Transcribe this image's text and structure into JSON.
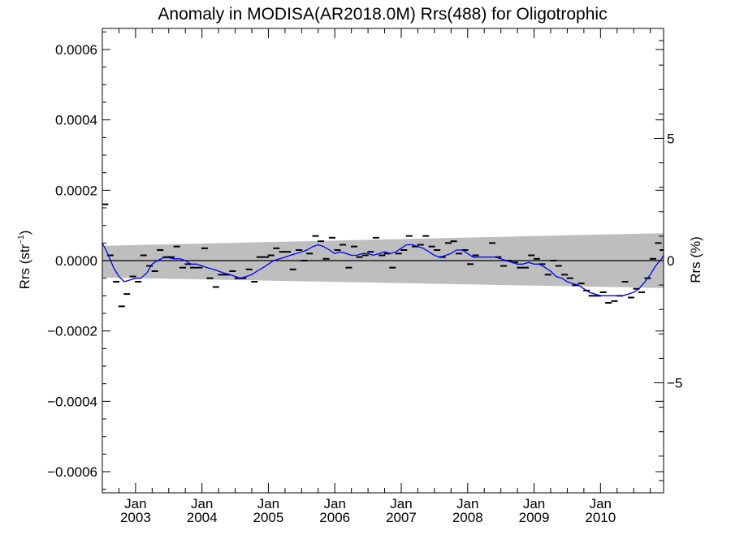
{
  "chart_data": {
    "type": "scatter",
    "title": "Anomaly in MODISA(AR2018.0M) Rrs(488) for Oligotrophic",
    "ylabel_left": {
      "base": "Rrs (str",
      "sup": "−1",
      "end": ")"
    },
    "ylabel_right": "Rrs (%)",
    "xlim": [
      2002.5,
      2010.95
    ],
    "ylim": [
      -0.00066,
      0.00066
    ],
    "y_right_lim": [
      -9.5,
      9.5
    ],
    "grid": false,
    "x_ticks": [
      {
        "value": 2003.0,
        "month": "Jan",
        "year": "2003"
      },
      {
        "value": 2004.0,
        "month": "Jan",
        "year": "2004"
      },
      {
        "value": 2005.0,
        "month": "Jan",
        "year": "2005"
      },
      {
        "value": 2006.0,
        "month": "Jan",
        "year": "2006"
      },
      {
        "value": 2007.0,
        "month": "Jan",
        "year": "2007"
      },
      {
        "value": 2008.0,
        "month": "Jan",
        "year": "2008"
      },
      {
        "value": 2009.0,
        "month": "Jan",
        "year": "2009"
      },
      {
        "value": 2010.0,
        "month": "Jan",
        "year": "2010"
      }
    ],
    "y_ticks_left": [
      {
        "value": 0.0006,
        "label": "0.0006"
      },
      {
        "value": 0.0004,
        "label": "0.0004"
      },
      {
        "value": 0.0002,
        "label": "0.0002"
      },
      {
        "value": 0.0,
        "label": "0.0000"
      },
      {
        "value": -0.0002,
        "label": "−0.0002"
      },
      {
        "value": -0.0004,
        "label": "−0.0004"
      },
      {
        "value": -0.0006,
        "label": "−0.0006"
      }
    ],
    "y_ticks_right": [
      {
        "value": 5,
        "label": "5"
      },
      {
        "value": 0,
        "label": "0"
      },
      {
        "value": -5,
        "label": "−5"
      }
    ],
    "band": {
      "color": "#bebebe",
      "upper": [
        [
          2002.5,
          4.2e-05
        ],
        [
          2010.95,
          7.8e-05
        ]
      ],
      "lower": [
        [
          2002.5,
          -4.8e-05
        ],
        [
          2010.95,
          -7.8e-05
        ]
      ]
    },
    "zero_line_color": "#000000",
    "series": [
      {
        "kind": "monthly-markers",
        "color": "#000000",
        "points": [
          [
            2002.54,
            0.00016
          ],
          [
            2002.62,
            1.5e-05
          ],
          [
            2002.71,
            -6e-05
          ],
          [
            2002.79,
            -0.00013
          ],
          [
            2002.87,
            -9.5e-05
          ],
          [
            2002.96,
            -4.5e-05
          ],
          [
            2003.04,
            -6e-05
          ],
          [
            2003.12,
            1.5e-05
          ],
          [
            2003.21,
            -1.5e-05
          ],
          [
            2003.29,
            -3e-05
          ],
          [
            2003.37,
            3e-05
          ],
          [
            2003.46,
            1e-05
          ],
          [
            2003.54,
            1e-05
          ],
          [
            2003.62,
            4e-05
          ],
          [
            2003.71,
            -2e-05
          ],
          [
            2003.79,
            -1e-05
          ],
          [
            2003.87,
            -2e-05
          ],
          [
            2003.96,
            -2e-05
          ],
          [
            2004.04,
            3.5e-05
          ],
          [
            2004.12,
            -5e-05
          ],
          [
            2004.21,
            -7.5e-05
          ],
          [
            2004.29,
            -4e-05
          ],
          [
            2004.37,
            -4e-05
          ],
          [
            2004.46,
            -3e-05
          ],
          [
            2004.54,
            -5e-05
          ],
          [
            2004.62,
            -5e-05
          ],
          [
            2004.71,
            -2.5e-05
          ],
          [
            2004.79,
            -6e-05
          ],
          [
            2004.87,
            1e-05
          ],
          [
            2004.96,
            1e-05
          ],
          [
            2005.04,
            1.5e-05
          ],
          [
            2005.12,
            3.5e-05
          ],
          [
            2005.21,
            2.5e-05
          ],
          [
            2005.29,
            2.5e-05
          ],
          [
            2005.37,
            -2.5e-05
          ],
          [
            2005.46,
            3e-05
          ],
          [
            2005.54,
            0.0
          ],
          [
            2005.62,
            2e-05
          ],
          [
            2005.71,
            7e-05
          ],
          [
            2005.79,
            5.5e-05
          ],
          [
            2005.87,
            5e-06
          ],
          [
            2005.96,
            6.5e-05
          ],
          [
            2006.04,
            3e-05
          ],
          [
            2006.12,
            4.5e-05
          ],
          [
            2006.21,
            -2e-05
          ],
          [
            2006.29,
            4e-05
          ],
          [
            2006.37,
            1e-05
          ],
          [
            2006.46,
            1.5e-05
          ],
          [
            2006.54,
            2.5e-05
          ],
          [
            2006.62,
            6.5e-05
          ],
          [
            2006.71,
            1.5e-05
          ],
          [
            2006.79,
            2e-05
          ],
          [
            2006.87,
            -2e-05
          ],
          [
            2006.96,
            2e-05
          ],
          [
            2007.04,
            3e-05
          ],
          [
            2007.12,
            7e-05
          ],
          [
            2007.21,
            4e-05
          ],
          [
            2007.29,
            4.5e-05
          ],
          [
            2007.37,
            7e-05
          ],
          [
            2007.46,
            4e-05
          ],
          [
            2007.54,
            3e-05
          ],
          [
            2007.62,
            1e-05
          ],
          [
            2007.71,
            5e-05
          ],
          [
            2007.79,
            5.5e-05
          ],
          [
            2007.87,
            2e-05
          ],
          [
            2007.96,
            3e-05
          ],
          [
            2008.04,
            -1e-05
          ],
          [
            2008.12,
            1.5e-05
          ],
          [
            2008.37,
            5e-05
          ],
          [
            2008.46,
            1e-05
          ],
          [
            2008.54,
            -1.5e-05
          ],
          [
            2008.62,
            0.0
          ],
          [
            2008.71,
            -5e-06
          ],
          [
            2008.79,
            -2e-05
          ],
          [
            2008.87,
            -2e-05
          ],
          [
            2008.96,
            1.5e-05
          ],
          [
            2009.04,
            5e-06
          ],
          [
            2009.12,
            -1e-05
          ],
          [
            2009.21,
            -4e-05
          ],
          [
            2009.29,
            0.0
          ],
          [
            2009.37,
            -1.5e-05
          ],
          [
            2009.46,
            -4e-05
          ],
          [
            2009.54,
            -5e-05
          ],
          [
            2009.62,
            -7e-05
          ],
          [
            2009.71,
            -6.5e-05
          ],
          [
            2009.79,
            -8.5e-05
          ],
          [
            2009.87,
            -0.0001
          ],
          [
            2009.96,
            -0.0001
          ],
          [
            2010.04,
            -9e-05
          ],
          [
            2010.12,
            -0.00012
          ],
          [
            2010.21,
            -0.000115
          ],
          [
            2010.29,
            -0.0001
          ],
          [
            2010.37,
            -6e-05
          ],
          [
            2010.46,
            -0.000105
          ],
          [
            2010.54,
            -8e-05
          ],
          [
            2010.62,
            -9e-05
          ],
          [
            2010.71,
            -5e-05
          ],
          [
            2010.79,
            5e-06
          ],
          [
            2010.87,
            5e-05
          ],
          [
            2010.94,
            3e-05
          ]
        ]
      },
      {
        "kind": "running-mean",
        "color": "#0000ff",
        "points": [
          [
            2002.5,
            5e-05
          ],
          [
            2002.58,
            2e-05
          ],
          [
            2002.67,
            -2e-05
          ],
          [
            2002.75,
            -4.5e-05
          ],
          [
            2002.83,
            -6e-05
          ],
          [
            2002.92,
            -5.5e-05
          ],
          [
            2003.0,
            -5e-05
          ],
          [
            2003.08,
            -5e-05
          ],
          [
            2003.17,
            -3.5e-05
          ],
          [
            2003.25,
            -1e-05
          ],
          [
            2003.33,
            0.0
          ],
          [
            2003.42,
            8e-06
          ],
          [
            2003.5,
            8e-06
          ],
          [
            2003.58,
            5e-06
          ],
          [
            2003.67,
            5e-06
          ],
          [
            2003.75,
            0.0
          ],
          [
            2003.83,
            -1e-05
          ],
          [
            2003.92,
            -1e-05
          ],
          [
            2004.0,
            -1.5e-05
          ],
          [
            2004.08,
            -2e-05
          ],
          [
            2004.17,
            -2.5e-05
          ],
          [
            2004.25,
            -3e-05
          ],
          [
            2004.33,
            -3.5e-05
          ],
          [
            2004.42,
            -4e-05
          ],
          [
            2004.5,
            -4.5e-05
          ],
          [
            2004.58,
            -5e-05
          ],
          [
            2004.67,
            -4.5e-05
          ],
          [
            2004.75,
            -4e-05
          ],
          [
            2004.83,
            -3e-05
          ],
          [
            2004.92,
            -2e-05
          ],
          [
            2005.0,
            -1e-05
          ],
          [
            2005.08,
            0.0
          ],
          [
            2005.17,
            5e-06
          ],
          [
            2005.25,
            1e-05
          ],
          [
            2005.33,
            1.5e-05
          ],
          [
            2005.42,
            2e-05
          ],
          [
            2005.5,
            2.5e-05
          ],
          [
            2005.58,
            3e-05
          ],
          [
            2005.67,
            4e-05
          ],
          [
            2005.75,
            4.5e-05
          ],
          [
            2005.83,
            4e-05
          ],
          [
            2005.92,
            3e-05
          ],
          [
            2006.0,
            2e-05
          ],
          [
            2006.08,
            2.5e-05
          ],
          [
            2006.17,
            2e-05
          ],
          [
            2006.25,
            1.5e-05
          ],
          [
            2006.33,
            1.5e-05
          ],
          [
            2006.42,
            2e-05
          ],
          [
            2006.5,
            2e-05
          ],
          [
            2006.58,
            1.5e-05
          ],
          [
            2006.67,
            2e-05
          ],
          [
            2006.75,
            2.5e-05
          ],
          [
            2006.83,
            2e-05
          ],
          [
            2006.92,
            2.5e-05
          ],
          [
            2007.0,
            3.5e-05
          ],
          [
            2007.08,
            4.5e-05
          ],
          [
            2007.17,
            4.5e-05
          ],
          [
            2007.25,
            4e-05
          ],
          [
            2007.33,
            3.5e-05
          ],
          [
            2007.42,
            2.5e-05
          ],
          [
            2007.5,
            1.5e-05
          ],
          [
            2007.58,
            1e-05
          ],
          [
            2007.67,
            1.5e-05
          ],
          [
            2007.75,
            2e-05
          ],
          [
            2007.83,
            3e-05
          ],
          [
            2007.92,
            3e-05
          ],
          [
            2008.0,
            2e-05
          ],
          [
            2008.08,
            1e-05
          ],
          [
            2008.17,
            1e-05
          ],
          [
            2008.25,
            1e-05
          ],
          [
            2008.33,
            1e-05
          ],
          [
            2008.42,
            1e-05
          ],
          [
            2008.5,
            5e-06
          ],
          [
            2008.58,
            0.0
          ],
          [
            2008.67,
            -5e-06
          ],
          [
            2008.75,
            -1e-05
          ],
          [
            2008.83,
            -1e-05
          ],
          [
            2008.92,
            -5e-06
          ],
          [
            2009.0,
            -1e-05
          ],
          [
            2009.08,
            -1e-05
          ],
          [
            2009.17,
            -2e-05
          ],
          [
            2009.25,
            -3e-05
          ],
          [
            2009.33,
            -4.5e-05
          ],
          [
            2009.42,
            -5e-05
          ],
          [
            2009.5,
            -6e-05
          ],
          [
            2009.58,
            -6.5e-05
          ],
          [
            2009.67,
            -7e-05
          ],
          [
            2009.75,
            -8e-05
          ],
          [
            2009.83,
            -9e-05
          ],
          [
            2009.92,
            -9.5e-05
          ],
          [
            2010.0,
            -0.0001
          ],
          [
            2010.08,
            -0.0001
          ],
          [
            2010.17,
            -0.0001
          ],
          [
            2010.25,
            -0.0001
          ],
          [
            2010.33,
            -0.0001
          ],
          [
            2010.42,
            -9.5e-05
          ],
          [
            2010.5,
            -9e-05
          ],
          [
            2010.58,
            -8e-05
          ],
          [
            2010.67,
            -6e-05
          ],
          [
            2010.75,
            -4e-05
          ],
          [
            2010.83,
            -1.5e-05
          ],
          [
            2010.92,
            5e-06
          ],
          [
            2010.95,
            1.5e-05
          ]
        ]
      }
    ]
  }
}
